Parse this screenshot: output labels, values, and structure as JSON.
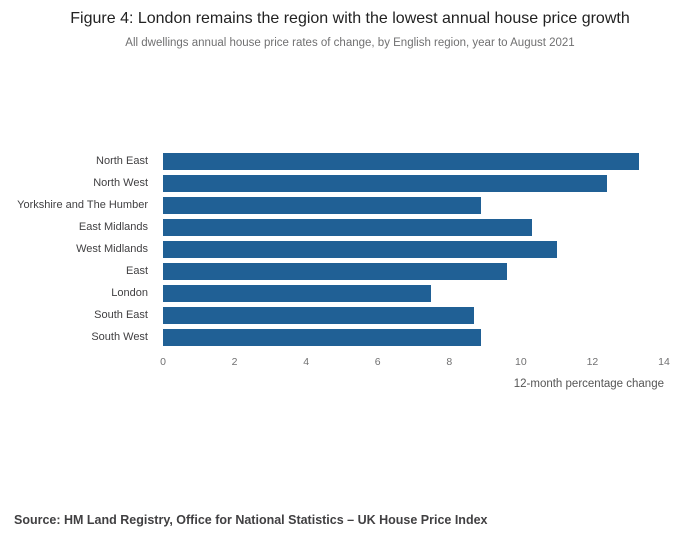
{
  "chart": {
    "title": "Figure 4: London remains the region with the lowest annual house price growth",
    "subtitle": "All dwellings annual house price rates of change, by English region, year to August 2021",
    "xlabel": "12-month percentage change",
    "source": "Source: HM Land Registry, Office for National Statistics – UK House Price Index"
  },
  "chart_data": {
    "type": "bar",
    "orientation": "horizontal",
    "title": "Figure 4: London remains the region with the lowest annual house price growth",
    "subtitle": "All dwellings annual house price rates of change, by English region, year to August 2021",
    "categories": [
      "North East",
      "North West",
      "Yorkshire and The Humber",
      "East Midlands",
      "West Midlands",
      "East",
      "London",
      "South East",
      "South West"
    ],
    "values": [
      13.3,
      12.4,
      8.9,
      10.3,
      11.0,
      9.6,
      7.5,
      8.7,
      8.9
    ],
    "xlabel": "12-month percentage change",
    "ylabel": "",
    "xlim": [
      0,
      14
    ],
    "xticks": [
      0,
      2,
      4,
      6,
      8,
      10,
      12,
      14
    ],
    "bar_color": "#206095",
    "grid": false,
    "legend": false
  }
}
